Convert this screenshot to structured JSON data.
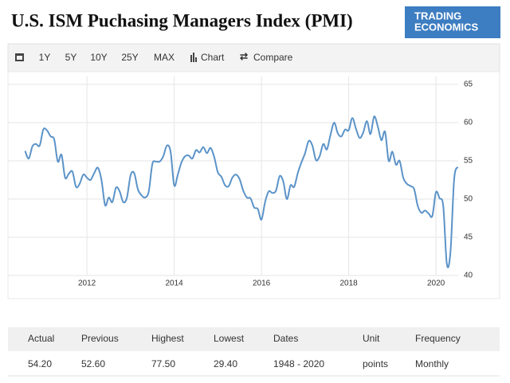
{
  "header": {
    "title": "U.S. ISM Puchasing Managers Index (PMI)",
    "logo": [
      "TRADING",
      "ECONOMICS"
    ]
  },
  "toolbar": {
    "ranges": [
      "1Y",
      "5Y",
      "10Y",
      "25Y",
      "MAX"
    ],
    "chart": "Chart",
    "compare": "Compare"
  },
  "chart_data": {
    "type": "line",
    "color": "#5b93c8",
    "grid": true,
    "xlim": [
      2010.19,
      2020.51
    ],
    "xticks": [
      2012,
      2014,
      2016,
      2018,
      2020
    ],
    "ylim": [
      40,
      65
    ],
    "yticks": [
      40,
      45,
      50,
      55,
      60,
      65
    ],
    "x": [
      2010.583,
      2010.667,
      2010.75,
      2010.833,
      2010.917,
      2011,
      2011.083,
      2011.167,
      2011.25,
      2011.333,
      2011.417,
      2011.5,
      2011.583,
      2011.667,
      2011.75,
      2011.833,
      2011.917,
      2012,
      2012.083,
      2012.167,
      2012.25,
      2012.333,
      2012.417,
      2012.5,
      2012.583,
      2012.667,
      2012.75,
      2012.833,
      2012.917,
      2013,
      2013.083,
      2013.167,
      2013.25,
      2013.333,
      2013.417,
      2013.5,
      2013.583,
      2013.667,
      2013.75,
      2013.833,
      2013.917,
      2014,
      2014.083,
      2014.167,
      2014.25,
      2014.333,
      2014.417,
      2014.5,
      2014.583,
      2014.667,
      2014.75,
      2014.833,
      2014.917,
      2015,
      2015.083,
      2015.167,
      2015.25,
      2015.333,
      2015.417,
      2015.5,
      2015.583,
      2015.667,
      2015.75,
      2015.833,
      2015.917,
      2016,
      2016.083,
      2016.167,
      2016.25,
      2016.333,
      2016.417,
      2016.5,
      2016.583,
      2016.667,
      2016.75,
      2016.833,
      2016.917,
      2017,
      2017.083,
      2017.167,
      2017.25,
      2017.333,
      2017.417,
      2017.5,
      2017.583,
      2017.667,
      2017.75,
      2017.833,
      2017.917,
      2018,
      2018.083,
      2018.167,
      2018.25,
      2018.333,
      2018.417,
      2018.5,
      2018.583,
      2018.667,
      2018.75,
      2018.833,
      2018.917,
      2019,
      2019.083,
      2019.167,
      2019.25,
      2019.333,
      2019.417,
      2019.5,
      2019.583,
      2019.667,
      2019.75,
      2019.833,
      2019.917,
      2020,
      2020.083,
      2020.167,
      2020.25,
      2020.333,
      2020.417,
      2020.5
    ],
    "values": [
      56.3,
      55.3,
      56.9,
      57.2,
      57.0,
      59.1,
      59.0,
      58.2,
      57.8,
      54.9,
      55.8,
      52.8,
      53.3,
      53.6,
      51.6,
      52.0,
      53.2,
      52.8,
      52.5,
      53.4,
      54.1,
      52.5,
      49.2,
      50.2,
      49.6,
      51.5,
      51.0,
      49.6,
      50.2,
      53.1,
      53.4,
      51.3,
      50.5,
      50.2,
      51.0,
      54.6,
      54.9,
      54.9,
      55.6,
      57.0,
      56.2,
      51.8,
      53.2,
      54.8,
      55.6,
      55.7,
      55.3,
      56.4,
      56.1,
      56.8,
      56.0,
      56.7,
      55.5,
      53.5,
      52.9,
      51.8,
      51.7,
      52.8,
      53.2,
      52.6,
      51.1,
      50.2,
      50.1,
      48.9,
      48.7,
      47.3,
      49.6,
      51.0,
      50.8,
      51.1,
      53.0,
      52.3,
      50.0,
      51.8,
      51.6,
      53.4,
      54.8,
      56.0,
      57.6,
      57.0,
      55.1,
      55.6,
      57.2,
      56.5,
      58.4,
      60.0,
      58.6,
      58.2,
      59.1,
      59.0,
      60.6,
      59.2,
      58.0,
      58.7,
      60.2,
      58.5,
      60.8,
      59.5,
      57.7,
      58.8,
      55.0,
      56.2,
      54.5,
      55.0,
      52.8,
      52.0,
      51.7,
      51.3,
      49.1,
      48.2,
      48.5,
      48.1,
      47.8,
      50.9,
      50.1,
      49.1,
      41.5,
      43.1,
      52.6,
      54.2
    ]
  },
  "table": {
    "headers": [
      "Actual",
      "Previous",
      "Highest",
      "Lowest",
      "Dates",
      "Unit",
      "Frequency"
    ],
    "rows": [
      [
        "54.20",
        "52.60",
        "77.50",
        "29.40",
        "1948 - 2020",
        "points",
        "Monthly"
      ]
    ]
  }
}
